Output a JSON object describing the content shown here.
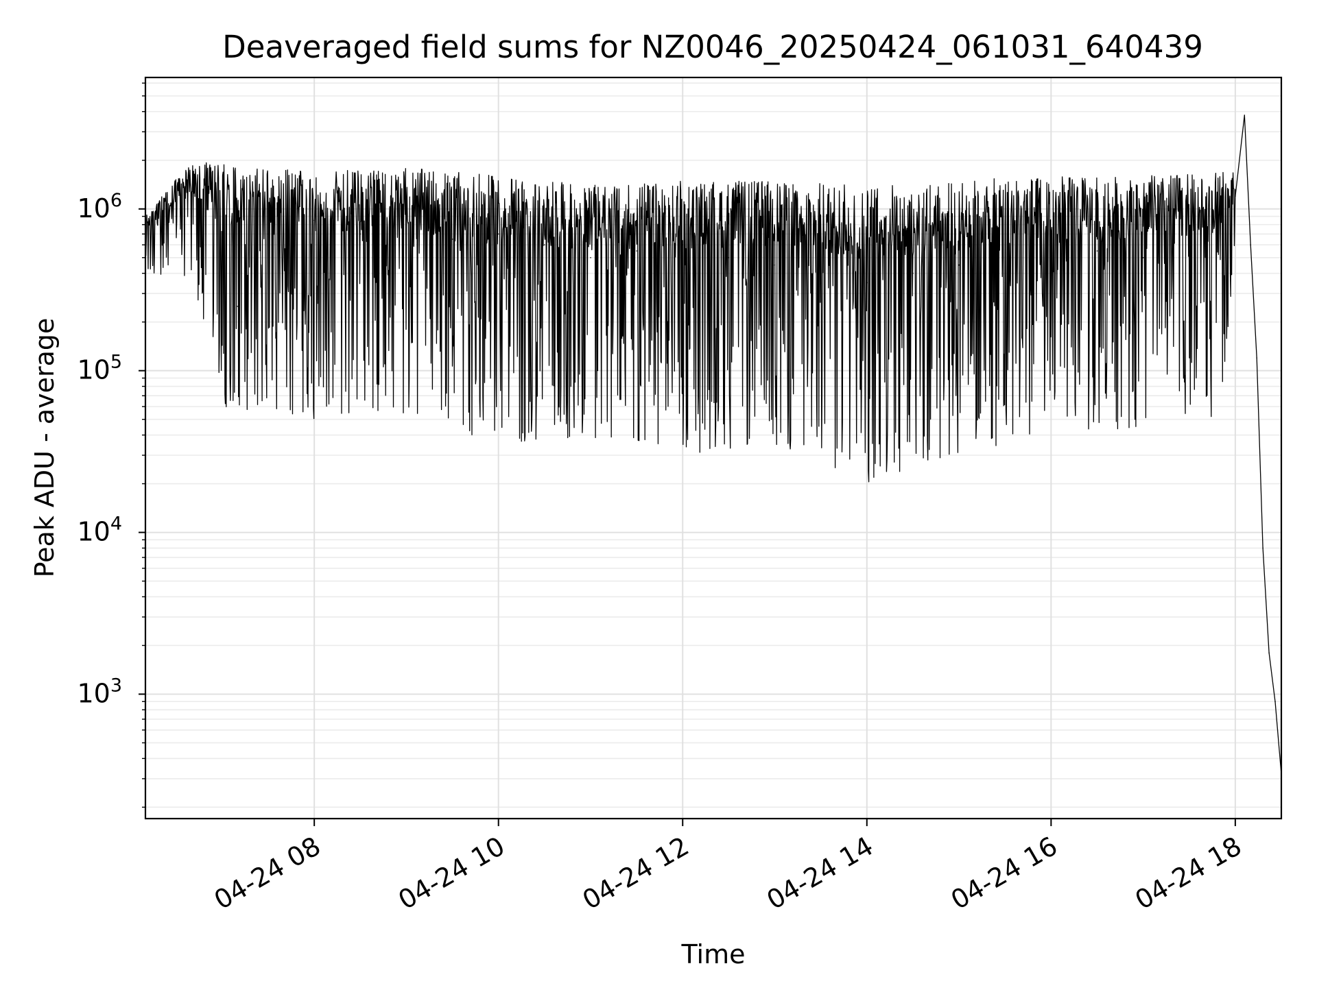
{
  "chart_data": {
    "type": "line",
    "title": "Deaveraged field sums for NZ0046_20250424_061031_640439",
    "xlabel": "Time",
    "ylabel": "Peak ADU - average",
    "x_scale": "time",
    "y_scale": "log",
    "grid": true,
    "line_color": "#000000",
    "xlim": [
      "2025-04-24 06:10",
      "2025-04-24 18:30"
    ],
    "ylim": [
      170,
      6500000
    ],
    "x_ticks": [
      "2025-04-24 08:00",
      "2025-04-24 10:00",
      "2025-04-24 12:00",
      "2025-04-24 14:00",
      "2025-04-24 16:00",
      "2025-04-24 18:00"
    ],
    "x_tick_labels": [
      "04-24 08",
      "04-24 10",
      "04-24 12",
      "04-24 14",
      "04-24 16",
      "04-24 18"
    ],
    "y_ticks": [
      1000,
      10000,
      100000,
      1000000
    ],
    "y_tick_bases": [
      "10",
      "10",
      "10",
      "10"
    ],
    "y_tick_exponents": [
      "3",
      "4",
      "5",
      "6"
    ],
    "series": [
      {
        "values": [
          [
            "2025-04-24 06:10",
            600000
          ],
          [
            "2025-04-24 06:30",
            900000
          ],
          [
            "2025-04-24 06:50",
            1400000
          ],
          [
            "2025-04-24 07:10",
            250000
          ],
          [
            "2025-04-24 07:30",
            700000
          ],
          [
            "2025-04-24 08:00",
            850000
          ],
          [
            "2025-04-24 08:30",
            700000
          ],
          [
            "2025-04-24 09:00",
            900000
          ],
          [
            "2025-04-24 09:30",
            650000
          ],
          [
            "2025-04-24 10:00",
            700000
          ],
          [
            "2025-04-24 10:30",
            600000
          ],
          [
            "2025-04-24 11:00",
            500000
          ],
          [
            "2025-04-24 11:30",
            550000
          ],
          [
            "2025-04-24 12:00",
            600000
          ],
          [
            "2025-04-24 12:30",
            500000
          ],
          [
            "2025-04-24 13:00",
            450000
          ],
          [
            "2025-04-24 13:30",
            400000
          ],
          [
            "2025-04-24 14:00",
            350000
          ],
          [
            "2025-04-24 14:30",
            400000
          ],
          [
            "2025-04-24 15:00",
            450000
          ],
          [
            "2025-04-24 15:30",
            350000
          ],
          [
            "2025-04-24 16:00",
            500000
          ],
          [
            "2025-04-24 16:30",
            550000
          ],
          [
            "2025-04-24 17:00",
            500000
          ],
          [
            "2025-04-24 17:30",
            550000
          ],
          [
            "2025-04-24 18:00",
            1200000
          ],
          [
            "2025-04-24 18:06",
            3800000
          ],
          [
            "2025-04-24 18:10",
            600000
          ],
          [
            "2025-04-24 18:14",
            120000
          ],
          [
            "2025-04-24 18:18",
            8000
          ],
          [
            "2025-04-24 18:22",
            1800
          ],
          [
            "2025-04-24 18:26",
            900
          ],
          [
            "2025-04-24 18:30",
            320
          ]
        ]
      }
    ],
    "band_envelope": {
      "description_units": "upper/lower extent of the dense noisy band over time",
      "upper": [
        [
          "2025-04-24 06:10",
          900000
        ],
        [
          "2025-04-24 06:40",
          2000000
        ],
        [
          "2025-04-24 08:00",
          1700000
        ],
        [
          "2025-04-24 09:00",
          1800000
        ],
        [
          "2025-04-24 10:00",
          1600000
        ],
        [
          "2025-04-24 11:00",
          1400000
        ],
        [
          "2025-04-24 12:00",
          1500000
        ],
        [
          "2025-04-24 13:00",
          1500000
        ],
        [
          "2025-04-24 14:00",
          1400000
        ],
        [
          "2025-04-24 15:00",
          1500000
        ],
        [
          "2025-04-24 16:00",
          1600000
        ],
        [
          "2025-04-24 17:00",
          1600000
        ],
        [
          "2025-04-24 18:00",
          1700000
        ]
      ],
      "lower": [
        [
          "2025-04-24 06:10",
          400000
        ],
        [
          "2025-04-24 06:40",
          300000
        ],
        [
          "2025-04-24 07:00",
          60000
        ],
        [
          "2025-04-24 08:00",
          50000
        ],
        [
          "2025-04-24 09:00",
          55000
        ],
        [
          "2025-04-24 10:00",
          35000
        ],
        [
          "2025-04-24 11:00",
          35000
        ],
        [
          "2025-04-24 12:00",
          30000
        ],
        [
          "2025-04-24 13:00",
          35000
        ],
        [
          "2025-04-24 14:00",
          20000
        ],
        [
          "2025-04-24 15:00",
          30000
        ],
        [
          "2025-04-24 16:00",
          40000
        ],
        [
          "2025-04-24 17:00",
          45000
        ],
        [
          "2025-04-24 17:50",
          50000
        ],
        [
          "2025-04-24 18:00",
          600000
        ]
      ]
    }
  }
}
